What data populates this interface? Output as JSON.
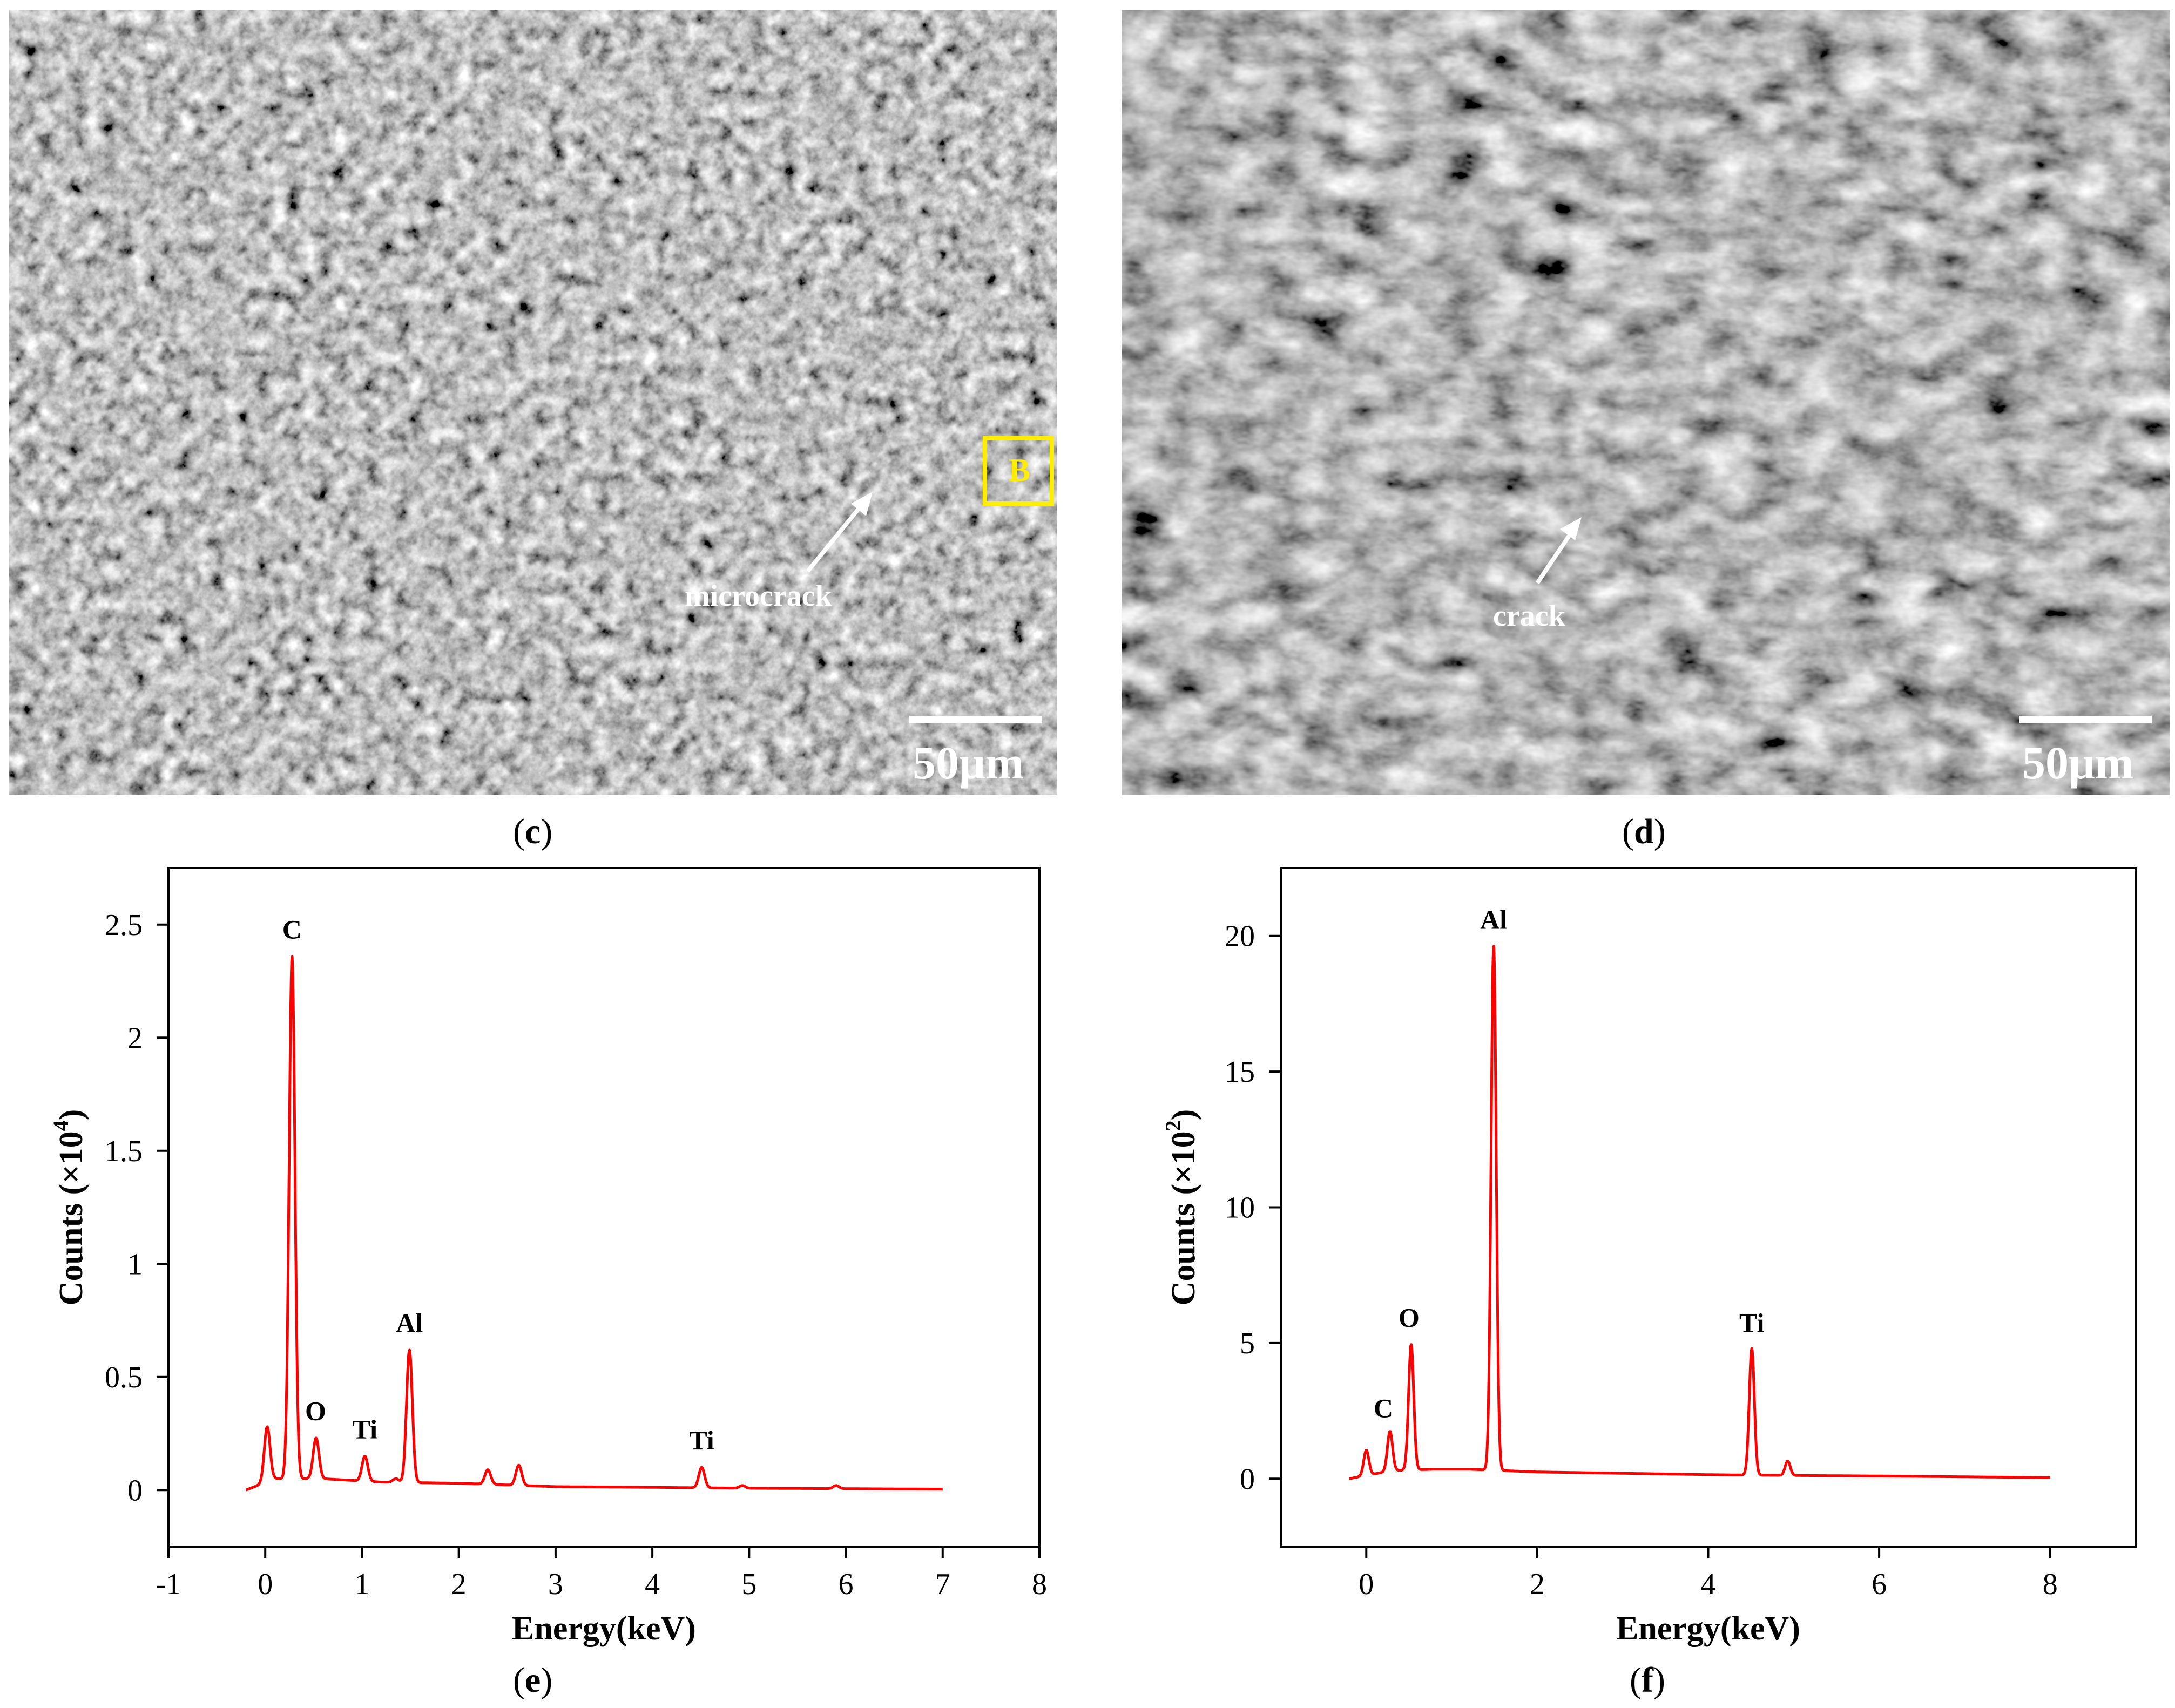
{
  "panels": {
    "c": {
      "label": "c",
      "scale_text": "50μm",
      "annotation": "microcrack",
      "marker_text": "B"
    },
    "d": {
      "label": "d",
      "scale_text": "50μm",
      "annotation": "crack"
    },
    "e": {
      "label": "e"
    },
    "f": {
      "label": "f"
    }
  },
  "chart_data": [
    {
      "type": "line",
      "panel": "e",
      "xlabel": "Energy(keV)",
      "ylabel_prefix": "Counts (×10",
      "ylabel_exp": "4",
      "ylabel_suffix": ")",
      "xlim": [
        -1,
        8
      ],
      "ylim": [
        -0.25,
        2.75
      ],
      "xticks": [
        -1,
        0,
        1,
        2,
        3,
        4,
        5,
        6,
        7,
        8
      ],
      "xtick_labels": [
        "-1",
        "0",
        "1",
        "2",
        "3",
        "4",
        "5",
        "6",
        "7",
        "8"
      ],
      "yticks": [
        0,
        0.5,
        1,
        1.5,
        2,
        2.5
      ],
      "ytick_labels": [
        "0",
        "0.5",
        "1",
        "1.5",
        "2",
        "2.5"
      ],
      "line_color": "#ff0000",
      "x_range": [
        -0.2,
        7.0
      ],
      "baseline": [
        [
          -0.2,
          0.0
        ],
        [
          0.1,
          0.05
        ],
        [
          0.6,
          0.05
        ],
        [
          1.2,
          0.035
        ],
        [
          2.0,
          0.03
        ],
        [
          3.0,
          0.015
        ],
        [
          4.0,
          0.012
        ],
        [
          5.0,
          0.008
        ],
        [
          6.0,
          0.006
        ],
        [
          7.0,
          0.004
        ]
      ],
      "peaks": [
        {
          "x": 0.02,
          "y": 0.28
        },
        {
          "x": 0.277,
          "y": 2.36
        },
        {
          "x": 0.525,
          "y": 0.23
        },
        {
          "x": 1.03,
          "y": 0.15
        },
        {
          "x": 1.35,
          "y": 0.05
        },
        {
          "x": 1.49,
          "y": 0.62
        },
        {
          "x": 2.3,
          "y": 0.09
        },
        {
          "x": 2.62,
          "y": 0.11
        },
        {
          "x": 4.51,
          "y": 0.1
        },
        {
          "x": 4.93,
          "y": 0.02
        },
        {
          "x": 5.9,
          "y": 0.02
        }
      ],
      "peak_labels": [
        {
          "text": "C",
          "x": 0.277,
          "y": 2.42
        },
        {
          "text": "O",
          "x": 0.52,
          "y": 0.29
        },
        {
          "text": "Ti",
          "x": 1.03,
          "y": 0.21
        },
        {
          "text": "Al",
          "x": 1.49,
          "y": 0.68
        },
        {
          "text": "Ti",
          "x": 4.51,
          "y": 0.16
        }
      ]
    },
    {
      "type": "line",
      "panel": "f",
      "xlabel": "Energy(keV)",
      "ylabel_prefix": "Counts (×10",
      "ylabel_exp": "2",
      "ylabel_suffix": ")",
      "xlim": [
        -1,
        9
      ],
      "ylim": [
        -2.5,
        22.5
      ],
      "xticks": [
        0,
        2,
        4,
        6,
        8
      ],
      "xtick_labels": [
        "0",
        "2",
        "4",
        "6",
        "8"
      ],
      "yticks": [
        0,
        5,
        10,
        15,
        20
      ],
      "ytick_labels": [
        "0",
        "5",
        "10",
        "15",
        "20"
      ],
      "line_color": "#ff0000",
      "x_range": [
        -0.2,
        8.0
      ],
      "baseline": [
        [
          -0.2,
          0.0
        ],
        [
          0.3,
          0.3
        ],
        [
          0.8,
          0.35
        ],
        [
          1.2,
          0.35
        ],
        [
          2.0,
          0.25
        ],
        [
          3.0,
          0.2
        ],
        [
          4.0,
          0.15
        ],
        [
          5.0,
          0.12
        ],
        [
          6.0,
          0.1
        ],
        [
          7.0,
          0.07
        ],
        [
          8.0,
          0.04
        ]
      ],
      "peaks": [
        {
          "x": 0.0,
          "y": 1.05
        },
        {
          "x": 0.277,
          "y": 1.75
        },
        {
          "x": 0.525,
          "y": 4.95
        },
        {
          "x": 1.49,
          "y": 19.7
        },
        {
          "x": 4.51,
          "y": 4.8
        },
        {
          "x": 4.93,
          "y": 0.65
        }
      ],
      "peak_labels": [
        {
          "text": "C",
          "x": 0.2,
          "y": 2.1
        },
        {
          "text": "O",
          "x": 0.5,
          "y": 5.45
        },
        {
          "text": "Al",
          "x": 1.49,
          "y": 20.1
        },
        {
          "text": "Ti",
          "x": 4.51,
          "y": 5.25
        }
      ]
    }
  ]
}
